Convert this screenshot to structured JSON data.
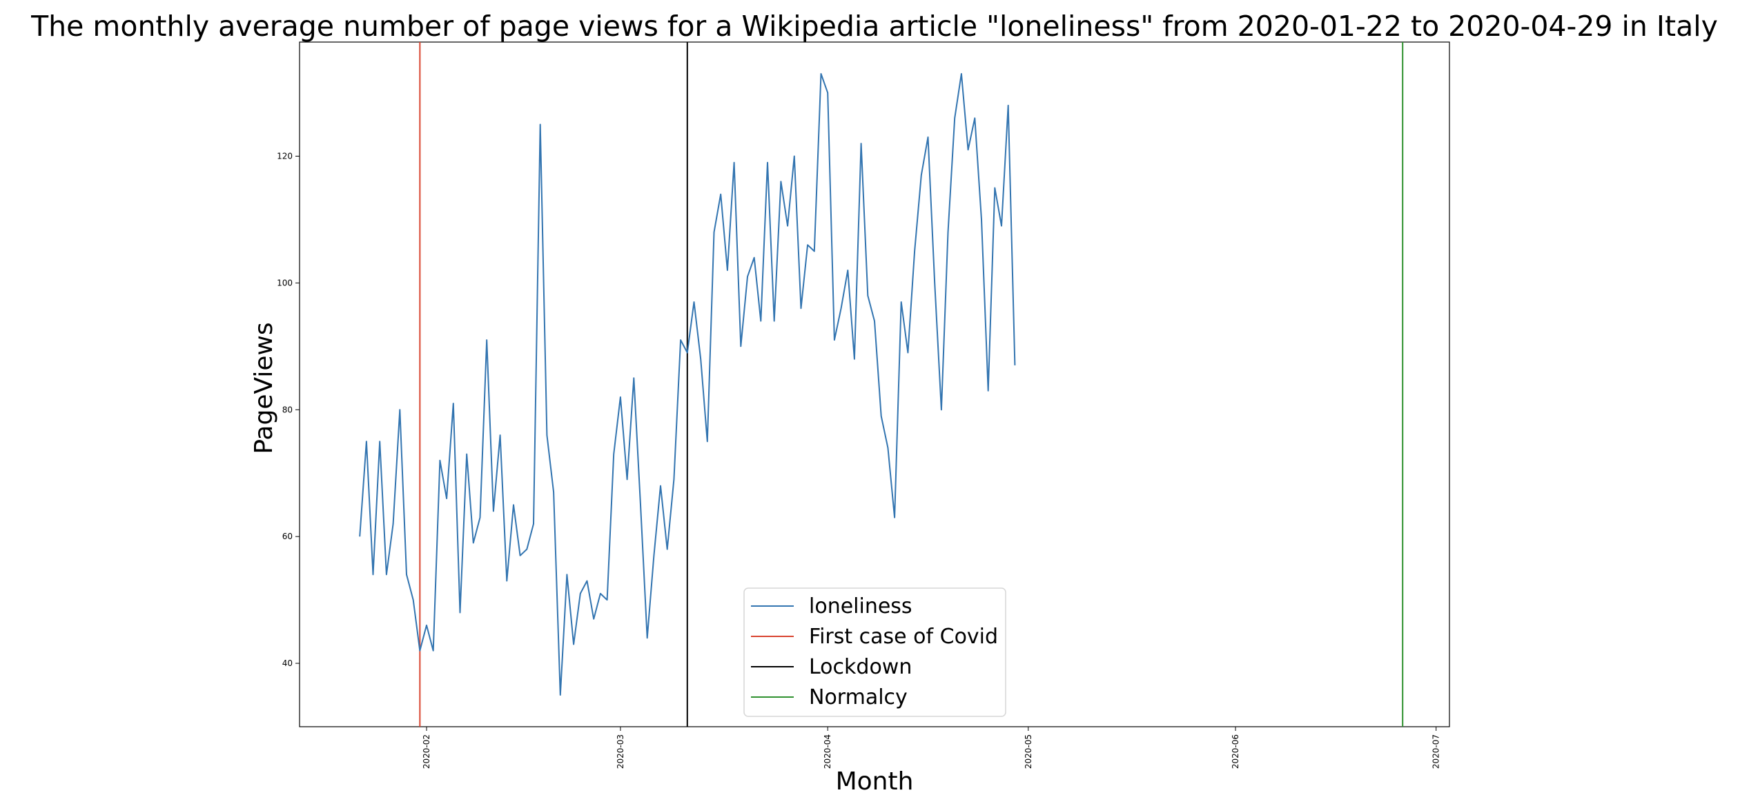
{
  "chart_data": {
    "type": "line",
    "title": "The monthly average number of page views for a Wikipedia article \"loneliness\" from 2020-01-22 to 2020-04-29 in Italy",
    "xlabel": "Month",
    "ylabel": "PageViews",
    "xlim": [
      "2020-01-13",
      "2020-07-03"
    ],
    "ylim": [
      30,
      138
    ],
    "x_ticks": [
      "2020-02",
      "2020-03",
      "2020-04",
      "2020-05",
      "2020-06",
      "2020-07"
    ],
    "y_ticks": [
      40,
      60,
      80,
      100,
      120
    ],
    "grid": false,
    "legend": {
      "location": "lower-center",
      "entries": [
        "loneliness",
        "First case of Covid",
        "Lockdown",
        "Normalcy"
      ]
    },
    "series": [
      {
        "name": "loneliness",
        "color": "#3274b0",
        "start_date": "2020-01-22",
        "end_date": "2020-04-29",
        "values": [
          60,
          75,
          54,
          75,
          54,
          62,
          80,
          54,
          50,
          42,
          46,
          42,
          72,
          66,
          81,
          48,
          73,
          59,
          63,
          91,
          64,
          76,
          53,
          65,
          57,
          58,
          62,
          125,
          76,
          67,
          35,
          54,
          43,
          51,
          53,
          47,
          51,
          50,
          73,
          82,
          69,
          85,
          65,
          44,
          57,
          68,
          58,
          69,
          91,
          89,
          97,
          88,
          75,
          108,
          114,
          102,
          119,
          90,
          101,
          104,
          94,
          119,
          94,
          116,
          109,
          120,
          96,
          106,
          105,
          133,
          130,
          91,
          96,
          102,
          88,
          122,
          98,
          94,
          79,
          74,
          63,
          97,
          89,
          105,
          117,
          123,
          100,
          80,
          108,
          126,
          133,
          121,
          126,
          110,
          83,
          115,
          109,
          128,
          87
        ]
      }
    ],
    "events": [
      {
        "name": "First case of Covid",
        "date": "2020-01-31",
        "color": "#d9442f"
      },
      {
        "name": "Lockdown",
        "date": "2020-03-11",
        "color": "#000000"
      },
      {
        "name": "Normalcy",
        "date": "2020-06-26",
        "color": "#2e912e"
      }
    ]
  }
}
